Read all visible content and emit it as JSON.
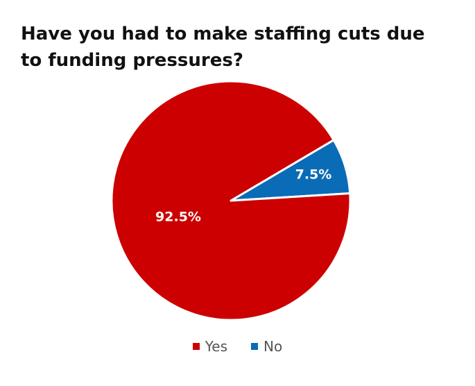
{
  "chart_data": {
    "type": "pie",
    "title": "Have you had to make staffing cuts due to funding pressures?",
    "categories": [
      "Yes",
      "No"
    ],
    "values": [
      92.5,
      7.5
    ],
    "labels": [
      "92.5%",
      "7.5%"
    ],
    "colors": [
      "#cc0000",
      "#0a6cb6"
    ],
    "legend_position": "bottom",
    "start_angle_deg": 3.5
  }
}
